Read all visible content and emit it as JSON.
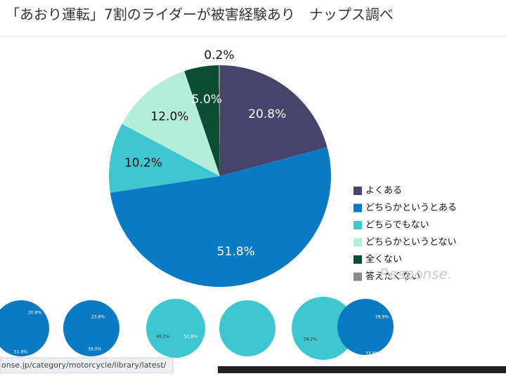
{
  "chart_data": {
    "type": "pie",
    "title": "「あおり運転」7割のライダーが被害経験あり　ナップス調べ",
    "categories": [
      "よくある",
      "どちらかというとある",
      "どちらでもない",
      "どちらかというとない",
      "全くない",
      "答えたくない"
    ],
    "values": [
      20.8,
      51.8,
      10.2,
      12.0,
      5.0,
      0.2
    ],
    "value_labels": [
      "20.8%",
      "51.8%",
      "10.2%",
      "12.0%",
      "5.0%",
      "0.2%"
    ],
    "colors": [
      "#47446b",
      "#0a7ac5",
      "#3ec7d0",
      "#b4eeda",
      "#0c4c35",
      "#8a8a8a"
    ],
    "legend": "right"
  },
  "watermark": "Response.",
  "thumbnail_labels": [
    "20.8%",
    "51.8%",
    "23.8%",
    "39.0%",
    "51.8%",
    "48.2%",
    "59.2%",
    "28.9%",
    "33.8%"
  ],
  "status_url": "onse.jp/category/motorcycle/library/latest/"
}
